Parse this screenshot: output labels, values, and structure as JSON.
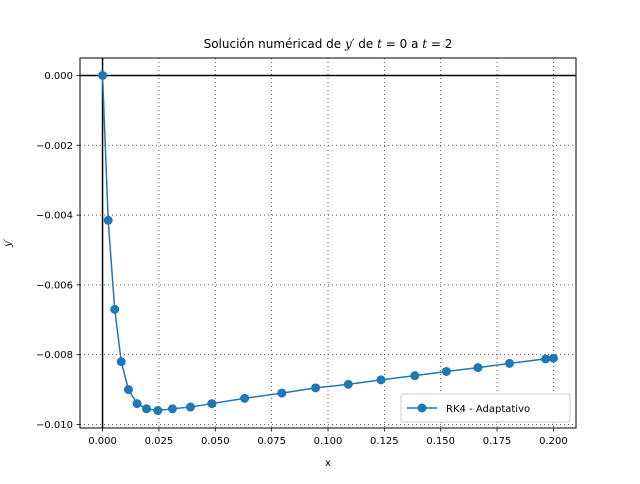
{
  "chart_data": {
    "type": "line",
    "title_parts": {
      "prefix": "Solución numéricad de ",
      "var": "y′",
      "mid1": " de ",
      "t0": "t",
      "eq0": " = 0",
      "mid2": " a ",
      "t1": "t",
      "eq1": " = 2"
    },
    "xlabel": "x",
    "ylabel": "y′",
    "xlim": [
      -0.01,
      0.21
    ],
    "ylim": [
      -0.0101,
      0.0005
    ],
    "x_ticks": [
      0.0,
      0.025,
      0.05,
      0.075,
      0.1,
      0.125,
      0.15,
      0.175,
      0.2
    ],
    "x_tick_labels": [
      "0.000",
      "0.025",
      "0.050",
      "0.075",
      "0.100",
      "0.125",
      "0.150",
      "0.175",
      "0.200"
    ],
    "y_ticks": [
      0.0,
      -0.002,
      -0.004,
      -0.006,
      -0.008,
      -0.01
    ],
    "y_tick_labels": [
      "0.000",
      "−0.002",
      "−0.004",
      "−0.006",
      "−0.008",
      "−0.010"
    ],
    "grid": true,
    "grid_style": "dotted",
    "reference_lines": {
      "x": 0,
      "y": 0
    },
    "legend": {
      "position": "lower-right"
    },
    "colors": {
      "series": "#1f77b4",
      "axes": "#000000",
      "grid": "#333333"
    },
    "series": [
      {
        "name": "RK4 - Adaptativo",
        "marker": "circle",
        "x": [
          0.0,
          0.0025,
          0.0054,
          0.0083,
          0.0115,
          0.0153,
          0.0195,
          0.0245,
          0.031,
          0.039,
          0.0485,
          0.063,
          0.0795,
          0.0945,
          0.109,
          0.1235,
          0.1385,
          0.1525,
          0.1665,
          0.1805,
          0.1965,
          0.2
        ],
        "y": [
          0.0,
          -0.00415,
          -0.0067,
          -0.0082,
          -0.009,
          -0.0094,
          -0.00955,
          -0.0096,
          -0.00955,
          -0.0095,
          -0.0094,
          -0.00925,
          -0.0091,
          -0.00895,
          -0.00885,
          -0.00872,
          -0.0086,
          -0.00848,
          -0.00837,
          -0.00825,
          -0.00812,
          -0.0081
        ]
      }
    ]
  }
}
